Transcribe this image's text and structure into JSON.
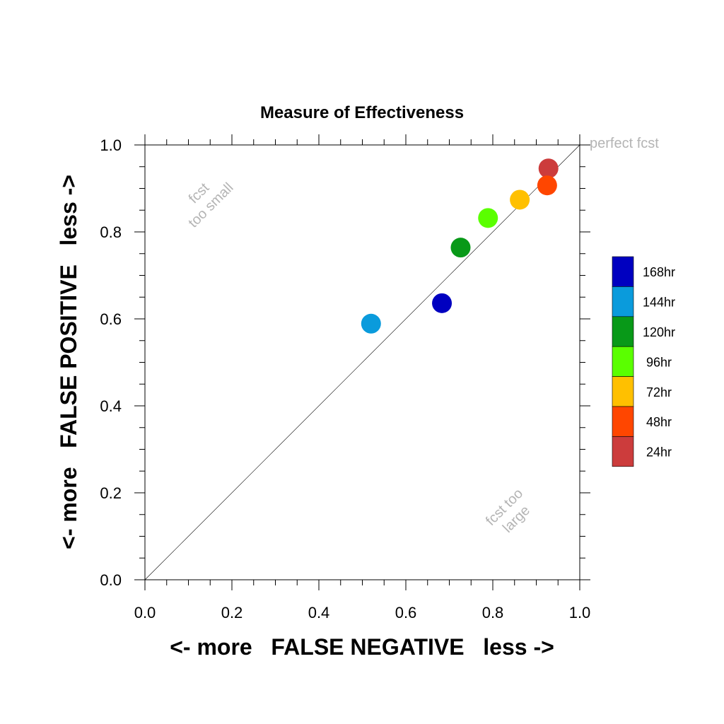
{
  "chart_data": {
    "type": "scatter",
    "title": "Measure of Effectiveness",
    "xlabel": "<- more   FALSE NEGATIVE   less ->",
    "ylabel": "<- more   FALSE POSITIVE   less ->",
    "xlim": [
      0,
      1
    ],
    "ylim": [
      0,
      1
    ],
    "xticks": [
      "0.0",
      "0.2",
      "0.4",
      "0.6",
      "0.8",
      "1.0"
    ],
    "yticks": [
      "0.0",
      "0.2",
      "0.4",
      "0.6",
      "0.8",
      "1.0"
    ],
    "reference_line": "diagonal y = x",
    "annotations": {
      "perfect": "perfect fcst",
      "too_small": [
        "fcst",
        "too small"
      ],
      "too_large": [
        "fcst too",
        "large"
      ]
    },
    "legend_position": "right",
    "series": [
      {
        "name": "24hr",
        "color": "#cc3c3c",
        "x": 0.928,
        "y": 0.946
      },
      {
        "name": "48hr",
        "color": "#ff4600",
        "x": 0.925,
        "y": 0.907
      },
      {
        "name": "72hr",
        "color": "#ffc000",
        "x": 0.862,
        "y": 0.874
      },
      {
        "name": "96hr",
        "color": "#5aff00",
        "x": 0.789,
        "y": 0.832
      },
      {
        "name": "120hr",
        "color": "#089918",
        "x": 0.726,
        "y": 0.764
      },
      {
        "name": "144hr",
        "color": "#0a9bdc",
        "x": 0.52,
        "y": 0.589
      },
      {
        "name": "168hr",
        "color": "#0000c0",
        "x": 0.683,
        "y": 0.636
      }
    ],
    "legend_order": [
      "168hr",
      "144hr",
      "120hr",
      "96hr",
      "72hr",
      "48hr",
      "24hr"
    ]
  }
}
